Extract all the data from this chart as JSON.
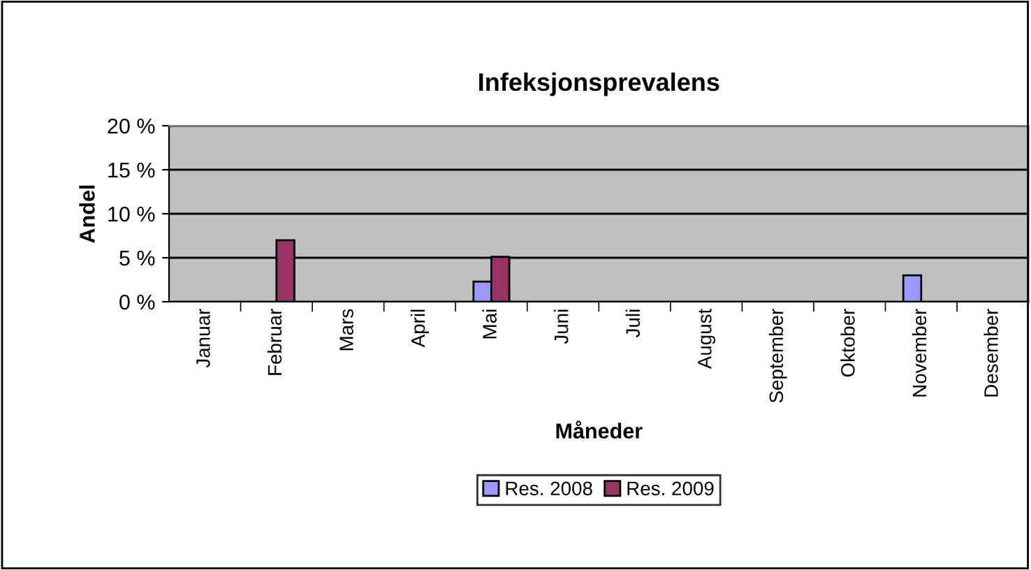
{
  "chart_data": {
    "type": "bar",
    "title": "Infeksjonsprevalens",
    "xlabel": "Måneder",
    "ylabel": "Andel",
    "categories": [
      "Januar",
      "Februar",
      "Mars",
      "April",
      "Mai",
      "Juni",
      "Juli",
      "August",
      "September",
      "Oktober",
      "November",
      "Desember"
    ],
    "series": [
      {
        "name": "Res. 2008",
        "color": "#9999ff",
        "values": [
          null,
          null,
          null,
          null,
          2.3,
          null,
          null,
          null,
          null,
          null,
          3,
          null
        ]
      },
      {
        "name": "Res. 2009",
        "color": "#993366",
        "values": [
          null,
          7,
          null,
          null,
          5.1,
          null,
          null,
          null,
          null,
          null,
          null,
          null
        ]
      }
    ],
    "ylim": [
      0,
      20
    ],
    "yticks": [
      {
        "value": 0,
        "label": "0 %"
      },
      {
        "value": 5,
        "label": "5 %"
      },
      {
        "value": 10,
        "label": "10 %"
      },
      {
        "value": 15,
        "label": "15 %"
      },
      {
        "value": 20,
        "label": "20 %"
      }
    ],
    "grid": "y",
    "legend": "bottom"
  }
}
